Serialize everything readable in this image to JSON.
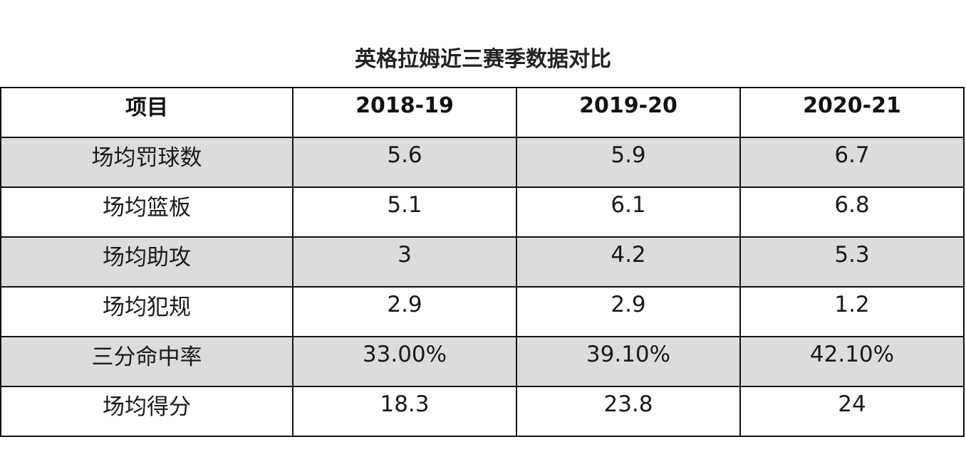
{
  "chart_data": {
    "type": "table",
    "title": "英格拉姆近三赛季数据对比",
    "columns": [
      "项目",
      "2018-19",
      "2019-20",
      "2020-21"
    ],
    "rows": [
      {
        "label": "场均罚球数",
        "values": [
          "5.6",
          "5.9",
          "6.7"
        ]
      },
      {
        "label": "场均篮板",
        "values": [
          "5.1",
          "6.1",
          "6.8"
        ]
      },
      {
        "label": "场均助攻",
        "values": [
          "3",
          "4.2",
          "5.3"
        ]
      },
      {
        "label": "场均犯规",
        "values": [
          "2.9",
          "2.9",
          "1.2"
        ]
      },
      {
        "label": "三分命中率",
        "values": [
          "33.00%",
          "39.10%",
          "42.10%"
        ]
      },
      {
        "label": "场均得分",
        "values": [
          "18.3",
          "23.8",
          "24"
        ]
      }
    ],
    "row_shading": [
      "#dcdcdc",
      "#ffffff",
      "#dcdcdc",
      "#ffffff",
      "#dcdcdc",
      "#ffffff"
    ]
  }
}
